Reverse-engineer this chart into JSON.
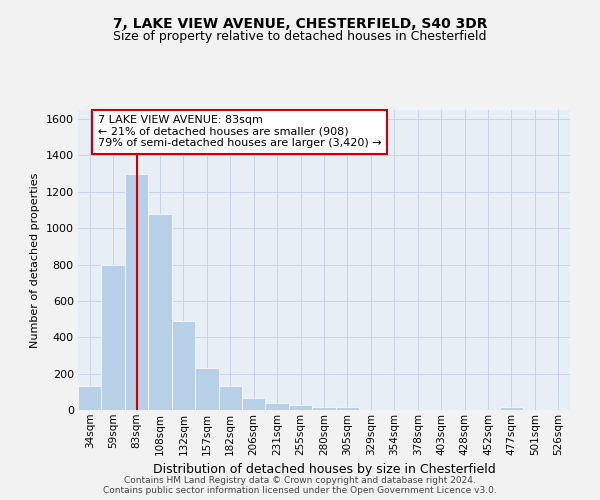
{
  "title1": "7, LAKE VIEW AVENUE, CHESTERFIELD, S40 3DR",
  "title2": "Size of property relative to detached houses in Chesterfield",
  "xlabel": "Distribution of detached houses by size in Chesterfield",
  "ylabel": "Number of detached properties",
  "footer1": "Contains HM Land Registry data © Crown copyright and database right 2024.",
  "footer2": "Contains public sector information licensed under the Open Government Licence v3.0.",
  "annotation_line1": "7 LAKE VIEW AVENUE: 83sqm",
  "annotation_line2": "← 21% of detached houses are smaller (908)",
  "annotation_line3": "79% of semi-detached houses are larger (3,420) →",
  "bar_color": "#b8cfe8",
  "bar_edge_color": "#ffffff",
  "vline_color": "#cc0000",
  "annotation_box_color": "#cc0000",
  "grid_color": "#c8d4e4",
  "background_color": "#e8eef6",
  "fig_background_color": "#f2f2f2",
  "categories": [
    "34sqm",
    "59sqm",
    "83sqm",
    "108sqm",
    "132sqm",
    "157sqm",
    "182sqm",
    "206sqm",
    "231sqm",
    "255sqm",
    "280sqm",
    "305sqm",
    "329sqm",
    "354sqm",
    "378sqm",
    "403sqm",
    "428sqm",
    "452sqm",
    "477sqm",
    "501sqm",
    "526sqm"
  ],
  "values": [
    130,
    800,
    1300,
    1080,
    490,
    230,
    130,
    65,
    38,
    25,
    15,
    15,
    0,
    0,
    0,
    0,
    0,
    0,
    15,
    0,
    0
  ],
  "ylim": [
    0,
    1650
  ],
  "yticks": [
    0,
    200,
    400,
    600,
    800,
    1000,
    1200,
    1400,
    1600
  ],
  "vline_x_index": 2,
  "figsize": [
    6.0,
    5.0
  ],
  "dpi": 100
}
